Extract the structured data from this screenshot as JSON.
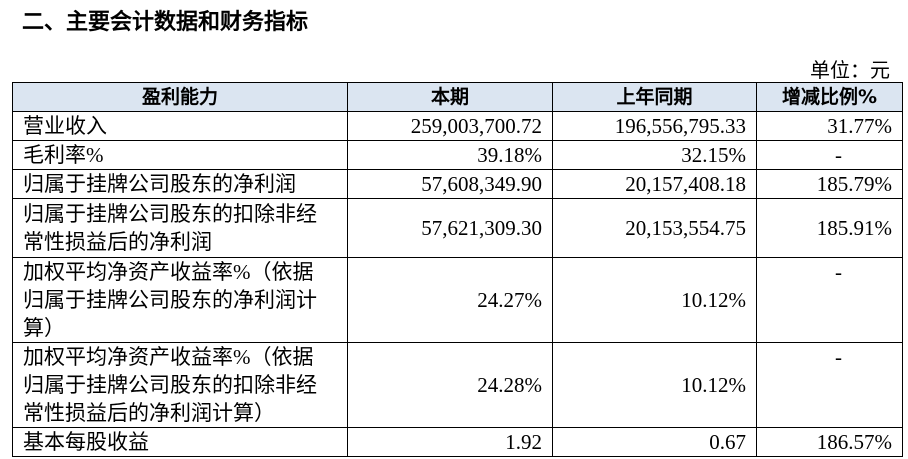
{
  "title": "二、主要会计数据和财务指标",
  "unit": "单位：元",
  "table": {
    "header": [
      "盈利能力",
      "本期",
      "上年同期",
      "增减比例%"
    ],
    "rows": [
      [
        "营业收入",
        "259,003,700.72",
        "196,556,795.33",
        "31.77%"
      ],
      [
        "毛利率%",
        "39.18%",
        "32.15%",
        "-"
      ],
      [
        "归属于挂牌公司股东的净利润",
        "57,608,349.90",
        "20,157,408.18",
        "185.79%"
      ],
      [
        "归属于挂牌公司股东的扣除非经常性损益后的净利润",
        "57,621,309.30",
        "20,153,554.75",
        "185.91%"
      ],
      [
        "加权平均净资产收益率%（依据归属于挂牌公司股东的净利润计算）",
        "24.27%",
        "10.12%",
        "-"
      ],
      [
        "加权平均净资产收益率%（依据归属于挂牌公司股东的扣除非经常性损益后的净利润计算）",
        "24.28%",
        "10.12%",
        "-"
      ],
      [
        "基本每股收益",
        "1.92",
        "0.67",
        "186.57%"
      ]
    ]
  }
}
